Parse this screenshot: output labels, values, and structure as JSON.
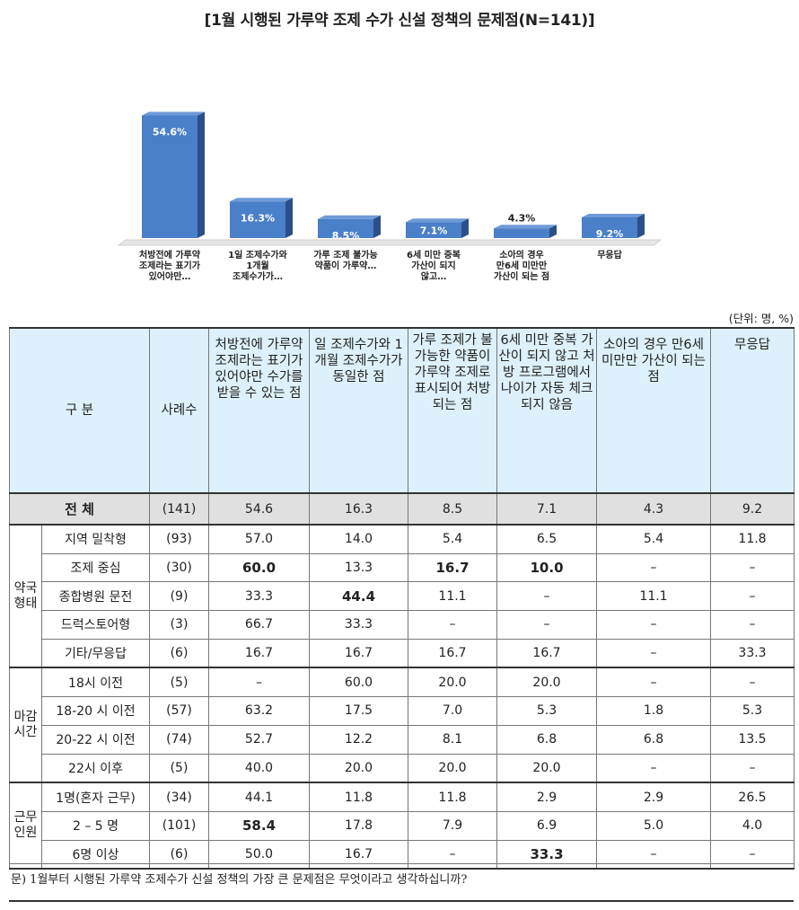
{
  "title": "[1월 시행된 가루약 조제 수가 신설 정책의 문제점(N=141)]",
  "chart_data": {
    "type": "bar",
    "categories": [
      "처방전에 가루약 조제라는 표기가 있어야만…",
      "1일 조제수가와 1개월 조제수가가…",
      "가루 조제 불가능 약품이 가루약…",
      "6세 미만 중복 가산이 되지 않고…",
      "소아의 경우 만6세 미만만 가산이 되는 점",
      "무응답"
    ],
    "value_labels": [
      "54.6%",
      "16.3%",
      "8.5%",
      "7.1%",
      "4.3%",
      "9.2%"
    ],
    "values": [
      54.6,
      16.3,
      8.5,
      7.1,
      4.3,
      9.2
    ],
    "ylim": [
      0,
      60
    ],
    "bar_color": "#4a7fc9",
    "bar_side_color": "#2b4f86",
    "bar_top_color": "#6f9ad8"
  },
  "unit_note": "(단위: 명, %)",
  "table": {
    "headers": {
      "category": "구 분",
      "n": "사례수",
      "cols": [
        "처방전에 가루약 조제라는 표기가 있어야만 수가를 받을 수 있는 점",
        "일 조제수가와 1개월 조제수가가 동일한 점",
        "가루 조제가 불가능한 약품이 가루약 조제로 표시되어 처방 되는 점",
        "6세 미만 중복 가산이 되지 않고 처방 프로그램에서 나이가 자동 체크 되지 않음",
        "소아의 경우 만6세 미만만 가산이 되는 점",
        "무응답"
      ]
    },
    "total": {
      "label": "전 체",
      "n": "(141)",
      "values": [
        "54.6",
        "16.3",
        "8.5",
        "7.1",
        "4.3",
        "9.2"
      ]
    },
    "groups": [
      {
        "label": "약국 형태",
        "rows": [
          {
            "label": "지역 밀착형",
            "n": "(93)",
            "values": [
              "57.0",
              "14.0",
              "5.4",
              "6.5",
              "5.4",
              "11.8"
            ],
            "bold": []
          },
          {
            "label": "조제 중심",
            "n": "(30)",
            "values": [
              "60.0",
              "13.3",
              "16.7",
              "10.0",
              "–",
              "–"
            ],
            "bold": [
              0,
              2,
              3
            ]
          },
          {
            "label": "종합병원 문전",
            "n": "(9)",
            "values": [
              "33.3",
              "44.4",
              "11.1",
              "–",
              "11.1",
              "–"
            ],
            "bold": [
              1
            ]
          },
          {
            "label": "드럭스토어형",
            "n": "(3)",
            "values": [
              "66.7",
              "33.3",
              "–",
              "–",
              "–",
              "–"
            ],
            "bold": []
          },
          {
            "label": "기타/무응답",
            "n": "(6)",
            "values": [
              "16.7",
              "16.7",
              "16.7",
              "16.7",
              "–",
              "33.3"
            ],
            "bold": []
          }
        ]
      },
      {
        "label": "마감 시간",
        "rows": [
          {
            "label": "18시 이전",
            "n": "(5)",
            "values": [
              "–",
              "60.0",
              "20.0",
              "20.0",
              "–",
              "–"
            ],
            "bold": []
          },
          {
            "label": "18-20 시 이전",
            "n": "(57)",
            "values": [
              "63.2",
              "17.5",
              "7.0",
              "5.3",
              "1.8",
              "5.3"
            ],
            "bold": []
          },
          {
            "label": "20-22 시 이전",
            "n": "(74)",
            "values": [
              "52.7",
              "12.2",
              "8.1",
              "6.8",
              "6.8",
              "13.5"
            ],
            "bold": []
          },
          {
            "label": "22시 이후",
            "n": "(5)",
            "values": [
              "40.0",
              "20.0",
              "20.0",
              "20.0",
              "–",
              "–"
            ],
            "bold": []
          }
        ]
      },
      {
        "label": "근무 인원",
        "rows": [
          {
            "label": "1명(혼자 근무)",
            "n": "(34)",
            "values": [
              "44.1",
              "11.8",
              "11.8",
              "2.9",
              "2.9",
              "26.5"
            ],
            "bold": []
          },
          {
            "label": "2 – 5 명",
            "n": "(101)",
            "values": [
              "58.4",
              "17.8",
              "7.9",
              "6.9",
              "5.0",
              "4.0"
            ],
            "bold": [
              0
            ]
          },
          {
            "label": "6명 이상",
            "n": "(6)",
            "values": [
              "50.0",
              "16.7",
              "–",
              "33.3",
              "–",
              "–"
            ],
            "bold": [
              3
            ]
          }
        ]
      }
    ]
  },
  "footnote": "문) 1월부터 시행된 가루약 조제수가 신설 정책의 가장 큰 문제점은 무엇이라고 생각하십니까?"
}
